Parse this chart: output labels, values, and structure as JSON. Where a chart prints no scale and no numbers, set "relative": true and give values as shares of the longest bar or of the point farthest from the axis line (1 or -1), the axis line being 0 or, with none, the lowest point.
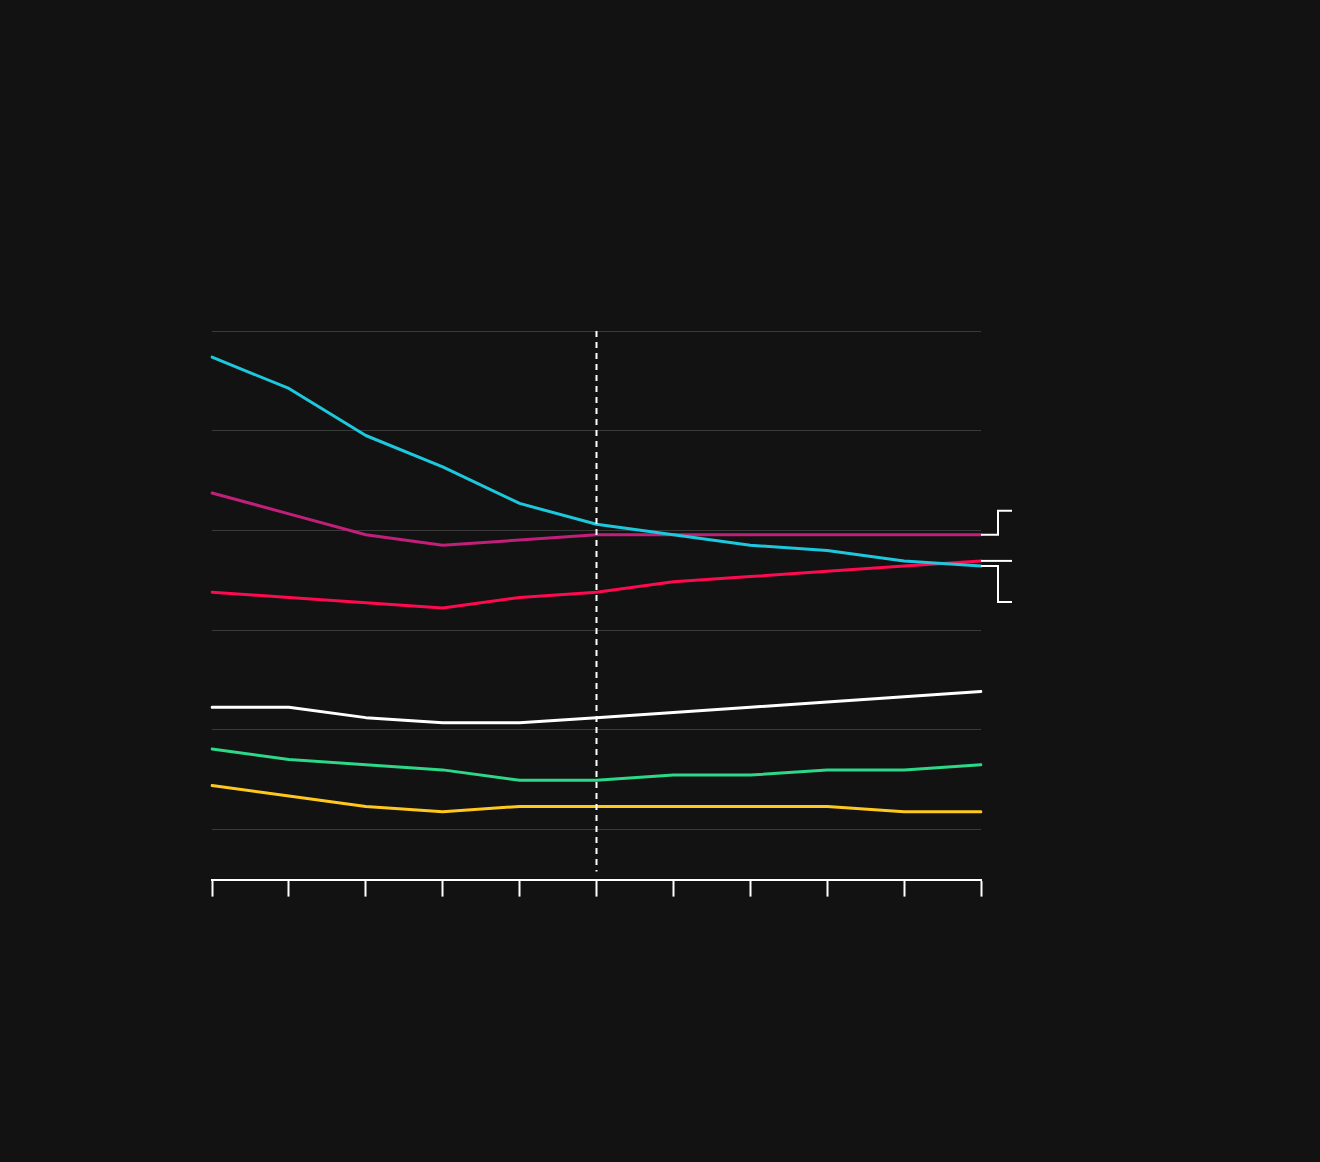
{
  "chart_data": {
    "type": "line",
    "relative": true,
    "grid": "y",
    "legend": false,
    "categories": [
      null,
      null,
      null,
      null,
      null,
      null,
      null,
      null,
      null,
      null,
      null
    ],
    "series": [
      {
        "color": "#1ec8dc",
        "values": [
          1.0,
          0.94,
          0.85,
          0.79,
          0.72,
          0.68,
          0.66,
          0.64,
          0.63,
          0.61,
          0.6
        ]
      },
      {
        "color": "#c0207a",
        "values": [
          0.74,
          0.7,
          0.66,
          0.64,
          0.65,
          0.66,
          0.66,
          0.66,
          0.66,
          0.66,
          0.66
        ]
      },
      {
        "color": "#ff0a50",
        "values": [
          0.55,
          0.54,
          0.53,
          0.52,
          0.54,
          0.55,
          0.57,
          0.58,
          0.59,
          0.6,
          0.61
        ]
      },
      {
        "color": "#ffffff",
        "values": [
          0.33,
          0.33,
          0.31,
          0.3,
          0.3,
          0.31,
          0.32,
          0.33,
          0.34,
          0.35,
          0.36
        ]
      },
      {
        "color": "#2ed889",
        "values": [
          0.25,
          0.23,
          0.22,
          0.21,
          0.19,
          0.19,
          0.2,
          0.2,
          0.21,
          0.21,
          0.22
        ]
      },
      {
        "color": "#ffc81e",
        "values": [
          0.18,
          0.16,
          0.14,
          0.13,
          0.14,
          0.14,
          0.14,
          0.14,
          0.14,
          0.13,
          0.13
        ]
      }
    ]
  }
}
